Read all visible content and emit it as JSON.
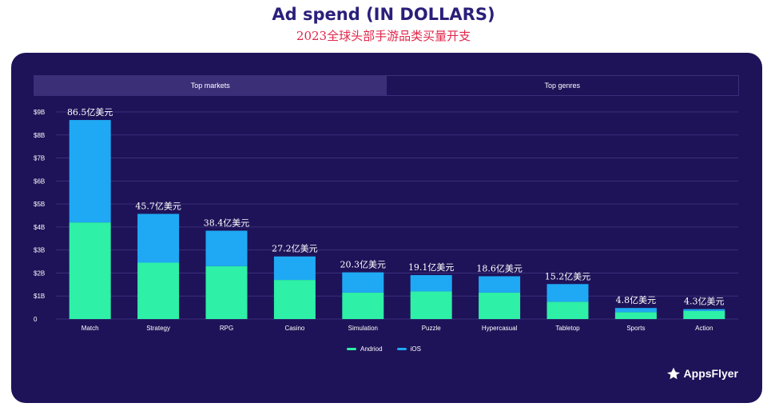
{
  "header": {
    "title": "Ad spend (IN DOLLARS)",
    "subtitle": "2023全球头部手游品类买量开支"
  },
  "tabs": [
    {
      "label": "Top markets",
      "active": true
    },
    {
      "label": "Top genres",
      "active": false
    }
  ],
  "brand": {
    "name": "AppsFlyer"
  },
  "colors": {
    "android": "#2ef0a6",
    "ios": "#1fa9f4",
    "panel": "#1e1358",
    "grid": "#3a2f7a"
  },
  "chart_data": {
    "type": "bar",
    "stacked": true,
    "categories": [
      "Match",
      "Strategy",
      "RPG",
      "Casino",
      "Simulation",
      "Puzzle",
      "Hypercasual",
      "Tabletop",
      "Sports",
      "Action"
    ],
    "series": [
      {
        "name": "Andriod",
        "values": [
          4.2,
          2.45,
          2.3,
          1.7,
          1.15,
          1.2,
          1.15,
          0.75,
          0.3,
          0.35
        ]
      },
      {
        "name": "iOS",
        "values": [
          4.45,
          2.12,
          1.54,
          1.02,
          0.88,
          0.71,
          0.71,
          0.77,
          0.18,
          0.08
        ]
      }
    ],
    "totals_labels": [
      "86.5亿美元",
      "45.7亿美元",
      "38.4亿美元",
      "27.2亿美元",
      "20.3亿美元",
      "19.1亿美元",
      "18.6亿美元",
      "15.2亿美元",
      "4.8亿美元",
      "4.3亿美元"
    ],
    "y_ticks": [
      "0",
      "$1B",
      "$2B",
      "$3B",
      "$4B",
      "$5B",
      "$6B",
      "$7B",
      "$8B",
      "$9B"
    ],
    "ylim": [
      0,
      9
    ],
    "grid": true,
    "legend_position": "bottom"
  }
}
